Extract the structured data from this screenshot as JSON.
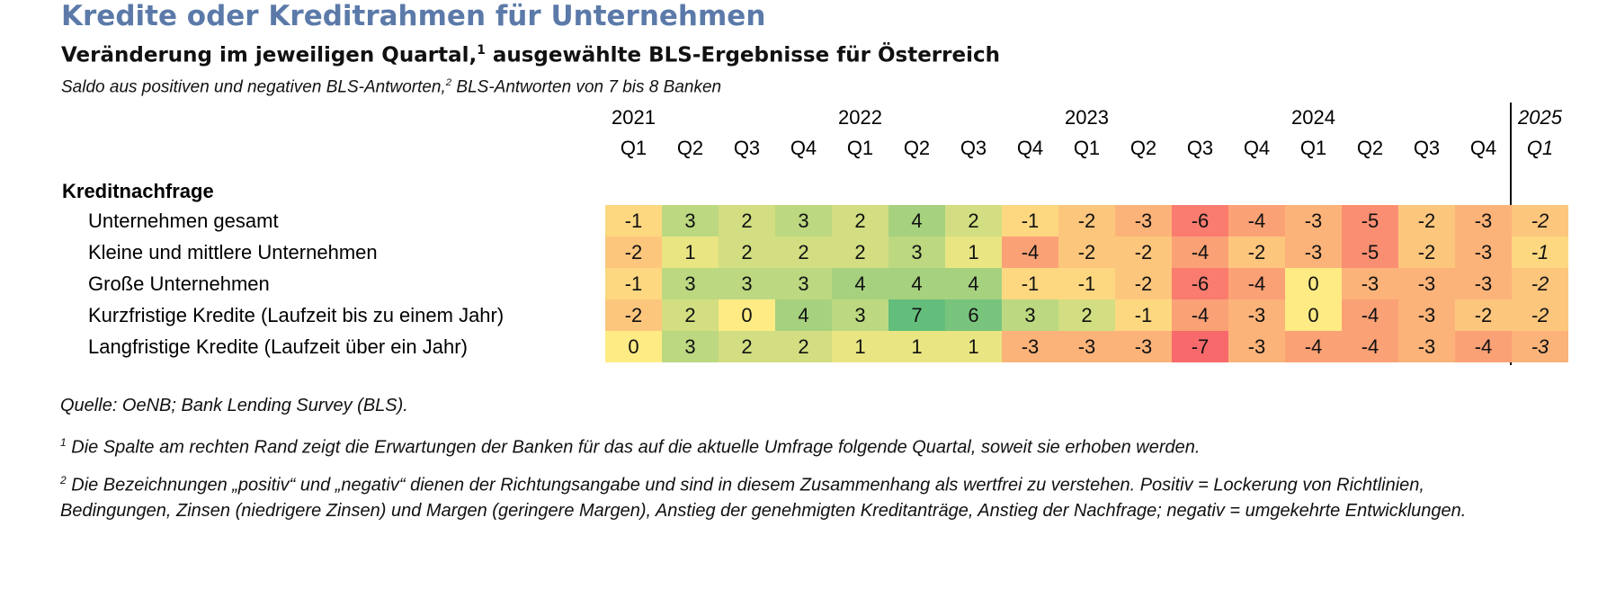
{
  "title": "Kredite oder Kreditrahmen für Unternehmen",
  "subtitle": "Veränderung im jeweiligen Quartal,",
  "subtitle_sup": "1",
  "subtitle_rest": " ausgewählte BLS-Ergebnisse für Österreich",
  "note": "Saldo aus positiven und negativen BLS-Antworten,",
  "note_sup": "2",
  "note_rest": " BLS-Antworten von 7 bis 8 Banken",
  "section_label": "Kreditnachfrage",
  "source": "Quelle: OeNB; Bank Lending Survey (BLS).",
  "footnote1_sup": "1",
  "footnote1": " Die Spalte am rechten Rand zeigt die Erwartungen der Banken für das auf die aktuelle Umfrage folgende Quartal, soweit sie erhoben werden.",
  "footnote2_sup": "2",
  "footnote2_line1": " Die Bezeichnungen „positiv“ und „negativ“ dienen der Richtungsangabe und sind in diesem Zusammenhang als wertfrei zu verstehen. Positiv = Lockerung von Richtlinien,",
  "footnote2_line2": "Bedingungen, Zinsen (niedrigere Zinsen) und Margen (geringere Margen), Anstieg der genehmigten Kreditanträge, Anstieg der Nachfrage; negativ = umgekehrte Entwicklungen.",
  "chart_data": {
    "type": "heatmap",
    "years": [
      "2021",
      "2022",
      "2023",
      "2024",
      "2025"
    ],
    "quarters": [
      "Q1",
      "Q2",
      "Q3",
      "Q4",
      "Q1",
      "Q2",
      "Q3",
      "Q4",
      "Q1",
      "Q2",
      "Q3",
      "Q4",
      "Q1",
      "Q2",
      "Q3",
      "Q4",
      "Q1"
    ],
    "expectation_column": 16,
    "rows": [
      {
        "label": "Unternehmen gesamt",
        "values": [
          -1,
          3,
          2,
          3,
          2,
          4,
          2,
          -1,
          -2,
          -3,
          -6,
          -4,
          -3,
          -5,
          -2,
          -3,
          -2
        ]
      },
      {
        "label": "Kleine und mittlere Unternehmen",
        "values": [
          -2,
          1,
          2,
          2,
          2,
          3,
          1,
          -4,
          -2,
          -2,
          -4,
          -2,
          -3,
          -5,
          -2,
          -3,
          -1
        ]
      },
      {
        "label": "Große Unternehmen",
        "values": [
          -1,
          3,
          3,
          3,
          4,
          4,
          4,
          -1,
          -1,
          -2,
          -6,
          -4,
          0,
          -3,
          -3,
          -3,
          -2
        ]
      },
      {
        "label": "Kurzfristige Kredite (Laufzeit bis zu einem Jahr)",
        "values": [
          -2,
          2,
          0,
          4,
          3,
          7,
          6,
          3,
          2,
          -1,
          -4,
          -3,
          0,
          -4,
          -3,
          -2,
          -2
        ]
      },
      {
        "label": "Langfristige Kredite (Laufzeit über ein Jahr)",
        "values": [
          0,
          3,
          2,
          2,
          1,
          1,
          1,
          -3,
          -3,
          -3,
          -7,
          -3,
          -4,
          -4,
          -3,
          -4,
          -3
        ]
      }
    ],
    "color_scale": {
      "negative": "#f8696b",
      "neutral": "#ffeb84",
      "positive": "#63be7b"
    }
  }
}
